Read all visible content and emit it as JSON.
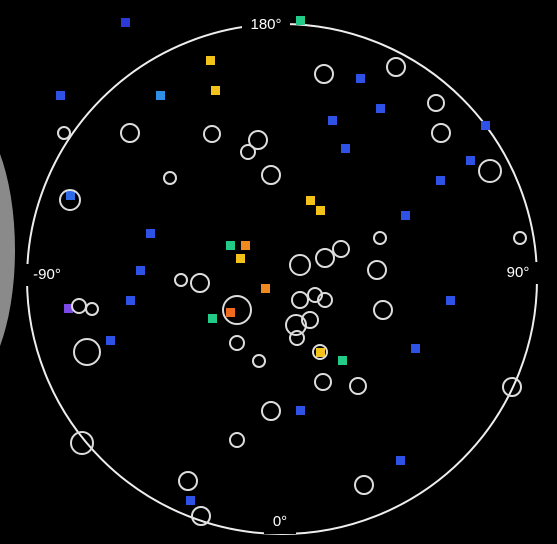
{
  "polar_plot": {
    "labels": {
      "top": "180°",
      "bottom": "0°",
      "left": "-90°",
      "right": "90°"
    }
  }
}
